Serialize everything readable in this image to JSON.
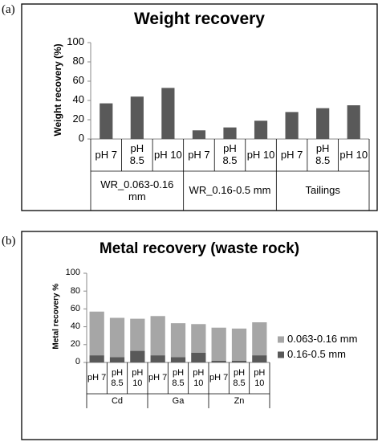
{
  "chart_data": [
    {
      "type": "bar",
      "panel_label": "(a)",
      "title": "Weight recovery",
      "y_label": "Weight recovery (%)",
      "categories": [
        "pH 7",
        "pH 8.5",
        "pH 10",
        "pH 7",
        "pH 8.5",
        "pH 10",
        "pH 7",
        "pH 8.5",
        "pH 10"
      ],
      "category_groups": [
        "WR_0.063-0.16 mm",
        "WR_0.16-0.5 mm",
        "Tailings"
      ],
      "values": [
        37,
        44,
        53,
        9,
        12,
        19,
        28,
        32,
        35
      ],
      "color": "#595959",
      "ylim": [
        0,
        100
      ],
      "yticks": [
        0,
        20,
        40,
        60,
        80,
        100
      ]
    },
    {
      "type": "stacked_bar",
      "panel_label": "(b)",
      "title": "Metal recovery (waste rock)",
      "y_label": "Metal recovery %",
      "categories": [
        "pH 7",
        "pH 8.5",
        "pH 10",
        "pH 7",
        "pH 8.5",
        "pH 10",
        "pH 7",
        "pH 8.5",
        "pH 10"
      ],
      "category_groups": [
        "Cd",
        "Ga",
        "Zn"
      ],
      "series": [
        {
          "name": "0.16-0.5 mm",
          "color": "#595959",
          "values": [
            8,
            6,
            13,
            8,
            6,
            11,
            2,
            2,
            8
          ]
        },
        {
          "name": "0.063-0.16 mm",
          "color": "#a6a6a6",
          "values": [
            49,
            44,
            36,
            44,
            38,
            32,
            37,
            36,
            37
          ]
        }
      ],
      "ylim": [
        0,
        100
      ],
      "yticks": [
        0,
        20,
        40,
        60,
        80,
        100
      ],
      "legend": "right"
    }
  ]
}
